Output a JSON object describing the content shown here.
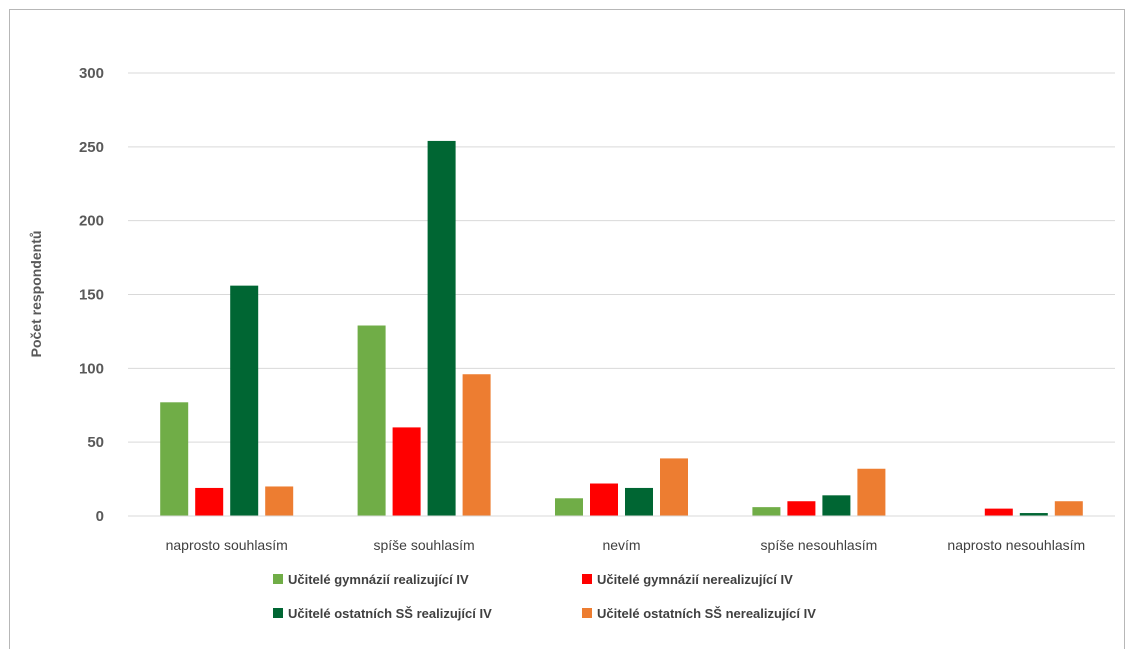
{
  "chart_data": {
    "type": "bar",
    "title": "",
    "xlabel": "",
    "ylabel": "Počet respondentů",
    "ylim": [
      0,
      300
    ],
    "yticks": [
      0,
      50,
      100,
      150,
      200,
      250,
      300
    ],
    "grid": true,
    "legend_position": "bottom",
    "categories": [
      "naprosto souhlasím",
      "spíše souhlasím",
      "nevím",
      "spíše nesouhlasím",
      "naprosto nesouhlasím"
    ],
    "series": [
      {
        "name": "Učitelé gymnázií realizující IV",
        "color": "#70ad47",
        "values": [
          77,
          129,
          12,
          6,
          0
        ]
      },
      {
        "name": "Učitelé gymnázií nerealizující IV",
        "color": "#ff0000",
        "values": [
          19,
          60,
          22,
          10,
          5
        ]
      },
      {
        "name": "Učitelé ostatních SŠ realizující IV",
        "color": "#006633",
        "values": [
          156,
          254,
          19,
          14,
          2
        ]
      },
      {
        "name": "Učitelé ostatních SŠ nerealizující IV",
        "color": "#ed7d31",
        "values": [
          20,
          96,
          39,
          32,
          10
        ]
      }
    ]
  }
}
